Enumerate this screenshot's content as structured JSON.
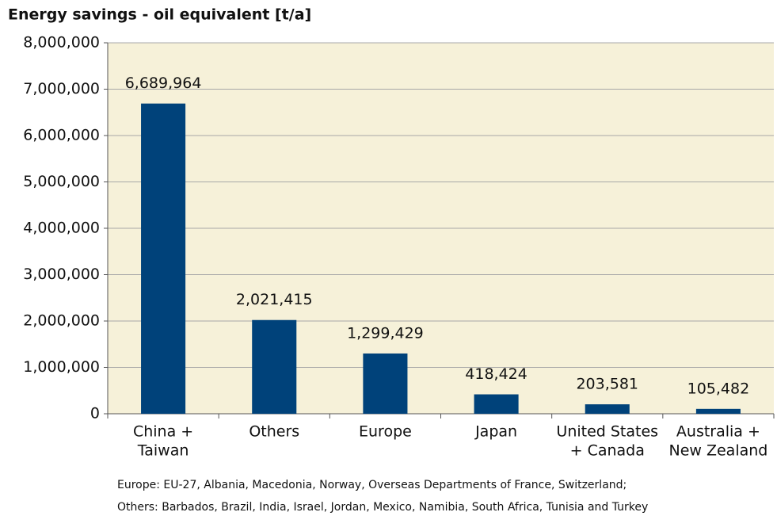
{
  "chart_data": {
    "type": "bar",
    "title": "Energy savings - oil equivalent [t/a]",
    "categories": [
      [
        "China +",
        "Taiwan"
      ],
      [
        "Others"
      ],
      [
        "Europe"
      ],
      [
        "Japan"
      ],
      [
        "United States",
        "+ Canada"
      ],
      [
        "Australia +",
        "New Zealand"
      ]
    ],
    "values": [
      6689964,
      2021415,
      1299429,
      418424,
      203581,
      105482
    ],
    "value_labels": [
      "6,689,964",
      "2,021,415",
      "1,299,429",
      "418,424",
      "203,581",
      "105,482"
    ],
    "color": "#00427a",
    "ylim": [
      0,
      8000000
    ],
    "yticks": [
      0,
      {
        "value": 1000000,
        "label": "1,000,000"
      },
      {
        "value": 2000000,
        "label": "2,000,000"
      },
      {
        "value": 3000000,
        "label": "3,000,000"
      },
      {
        "value": 4000000,
        "label": "4,000,000"
      },
      {
        "value": 5000000,
        "label": "5,000,000"
      },
      {
        "value": 6000000,
        "label": "6,000,000"
      },
      {
        "value": 7000000,
        "label": "7,000,000"
      },
      {
        "value": 8000000,
        "label": "8,000,000"
      }
    ],
    "grid": true,
    "notes": [
      "Europe: EU-27, Albania, Macedonia, Norway, Overseas Departments of France, Switzerland;",
      "Others: Barbados, Brazil, India, Israel, Jordan, Mexico, Namibia, South Africa, Tunisia and Turkey"
    ]
  }
}
